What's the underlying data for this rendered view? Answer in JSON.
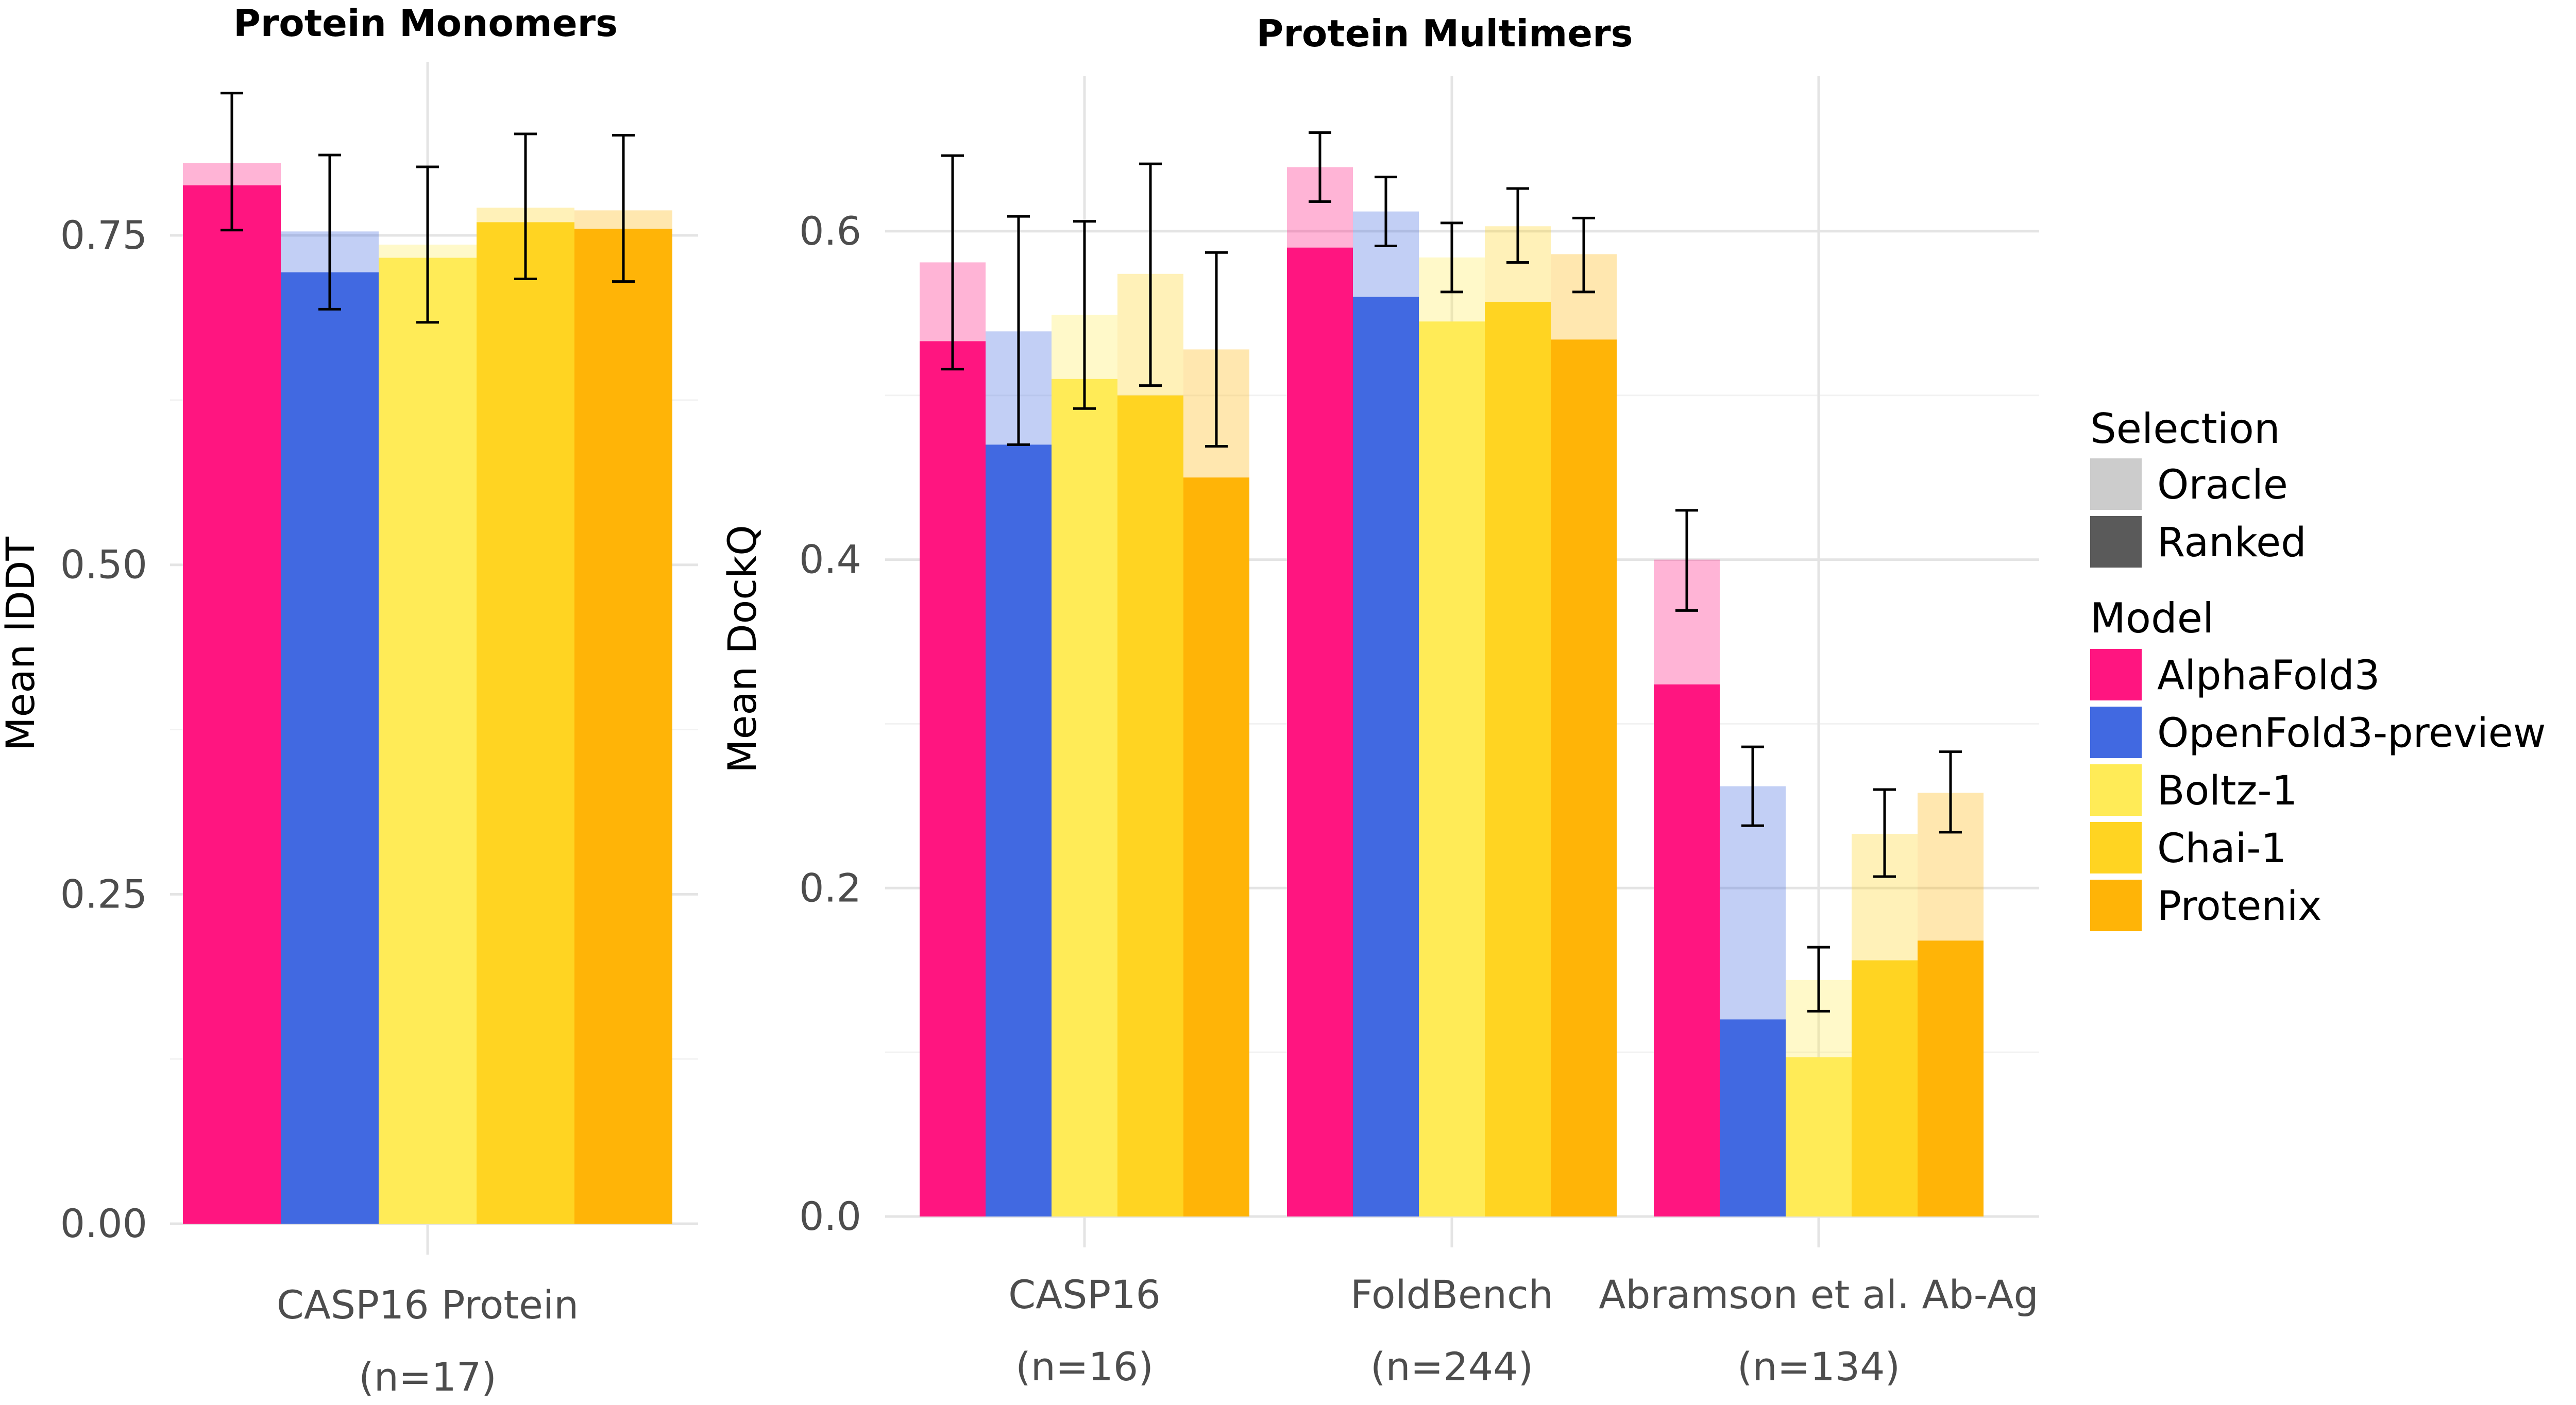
{
  "chart_data": [
    {
      "type": "bar",
      "title": "Protein Monomers",
      "ylabel": "Mean lDDT",
      "xlabel": "",
      "ylim": [
        0,
        0.87
      ],
      "yticks": [
        "0.00",
        "0.25",
        "0.50",
        "0.75"
      ],
      "ytick_values": [
        0,
        0.25,
        0.5,
        0.75
      ],
      "categories": [
        "CASP16 Protein"
      ],
      "category_counts": [
        "(n=17)"
      ],
      "grid": true,
      "series": [
        {
          "name": "AlphaFold3",
          "ranked": [
            0.788
          ],
          "oracle": [
            0.805
          ],
          "err": [
            [
              0.754,
              0.858
            ]
          ]
        },
        {
          "name": "OpenFold3-preview",
          "ranked": [
            0.722
          ],
          "oracle": [
            0.753
          ],
          "err": [
            [
              0.694,
              0.811
            ]
          ]
        },
        {
          "name": "Boltz-1",
          "ranked": [
            0.733
          ],
          "oracle": [
            0.743
          ],
          "err": [
            [
              0.684,
              0.802
            ]
          ]
        },
        {
          "name": "Chai-1",
          "ranked": [
            0.76
          ],
          "oracle": [
            0.771
          ],
          "err": [
            [
              0.717,
              0.827
            ]
          ]
        },
        {
          "name": "Protenix",
          "ranked": [
            0.755
          ],
          "oracle": [
            0.769
          ],
          "err": [
            [
              0.715,
              0.826
            ]
          ]
        }
      ]
    },
    {
      "type": "bar",
      "title": "Protein Multimers",
      "ylabel": "Mean DockQ",
      "xlabel": "",
      "ylim": [
        0,
        0.7
      ],
      "yticks": [
        "0.0",
        "0.2",
        "0.4",
        "0.6"
      ],
      "ytick_values": [
        0,
        0.2,
        0.4,
        0.6
      ],
      "categories": [
        "CASP16",
        "FoldBench",
        "Abramson et al. Ab-Ag"
      ],
      "category_counts": [
        "(n=16)",
        "(n=244)",
        "(n=134)"
      ],
      "grid": true,
      "series": [
        {
          "name": "AlphaFold3",
          "ranked": [
            0.533,
            0.59,
            0.324
          ],
          "oracle": [
            0.581,
            0.639,
            0.4
          ],
          "err": [
            [
              0.516,
              0.646
            ],
            [
              0.618,
              0.66
            ],
            [
              0.369,
              0.43
            ]
          ]
        },
        {
          "name": "OpenFold3-preview",
          "ranked": [
            0.47,
            0.56,
            0.12
          ],
          "oracle": [
            0.539,
            0.612,
            0.262
          ],
          "err": [
            [
              0.47,
              0.609
            ],
            [
              0.591,
              0.633
            ],
            [
              0.238,
              0.286
            ]
          ]
        },
        {
          "name": "Boltz-1",
          "ranked": [
            0.51,
            0.545,
            0.097
          ],
          "oracle": [
            0.549,
            0.584,
            0.144
          ],
          "err": [
            [
              0.492,
              0.606
            ],
            [
              0.563,
              0.605
            ],
            [
              0.125,
              0.164
            ]
          ]
        },
        {
          "name": "Chai-1",
          "ranked": [
            0.5,
            0.557,
            0.156
          ],
          "oracle": [
            0.574,
            0.603,
            0.233
          ],
          "err": [
            [
              0.506,
              0.641
            ],
            [
              0.581,
              0.626
            ],
            [
              0.207,
              0.26
            ]
          ]
        },
        {
          "name": "Protenix",
          "ranked": [
            0.45,
            0.534,
            0.168
          ],
          "oracle": [
            0.528,
            0.586,
            0.258
          ],
          "err": [
            [
              0.469,
              0.587
            ],
            [
              0.563,
              0.608
            ],
            [
              0.234,
              0.283
            ]
          ]
        }
      ]
    }
  ],
  "legend": {
    "placement": "right",
    "selection_title": "Selection",
    "selection_items": [
      {
        "label": "Oracle",
        "color": "#cccccc"
      },
      {
        "label": "Ranked",
        "color": "#5a5a5a"
      }
    ],
    "model_title": "Model",
    "model_items": [
      {
        "label": "AlphaFold3",
        "color": "#ff1580"
      },
      {
        "label": "OpenFold3-preview",
        "color": "#4169e1"
      },
      {
        "label": "Boltz-1",
        "color": "#ffeb57"
      },
      {
        "label": "Chai-1",
        "color": "#ffd422"
      },
      {
        "label": "Protenix",
        "color": "#ffb407"
      }
    ]
  },
  "colors": {
    "AlphaFold3": "#ff1580",
    "OpenFold3-preview": "#4169e1",
    "Boltz-1": "#ffeb57",
    "Chai-1": "#ffd422",
    "Protenix": "#ffb407",
    "grid": "#e4e4e4",
    "grid_minor": "#f2f2f2",
    "error_bar": "#000000"
  }
}
